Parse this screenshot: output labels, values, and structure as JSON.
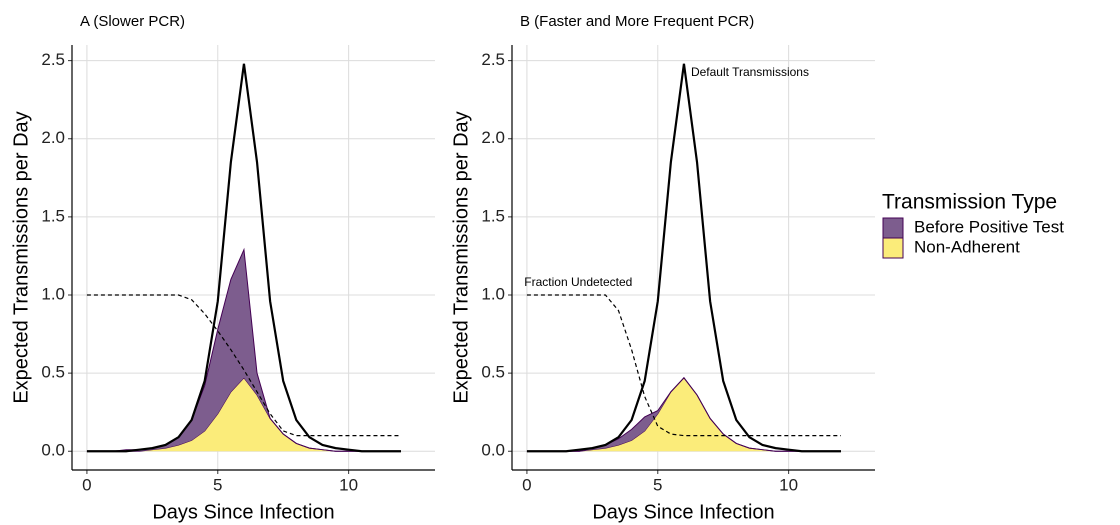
{
  "chart_data": [
    {
      "type": "area",
      "title": "A (Slower PCR)",
      "x_label": "Days Since Infection",
      "y_label": "Expected Transmissions per Day",
      "x": [
        0,
        0.5,
        1,
        1.5,
        2,
        2.5,
        3,
        3.5,
        4,
        4.5,
        5,
        5.5,
        6,
        6.5,
        7,
        7.5,
        8,
        8.5,
        9,
        9.5,
        10,
        10.5,
        11,
        11.5,
        12
      ],
      "series": [
        {
          "name": "Non-Adherent",
          "color": "#fbec7a",
          "stroke": "#440154",
          "values": [
            0,
            0,
            0,
            0,
            0,
            0.01,
            0.02,
            0.04,
            0.07,
            0.13,
            0.24,
            0.38,
            0.47,
            0.36,
            0.21,
            0.11,
            0.05,
            0.02,
            0.01,
            0,
            0,
            0,
            0,
            0,
            0
          ]
        },
        {
          "name": "Before Positive Test",
          "color": "#7d5d8e",
          "stroke": "#440154",
          "values": [
            0,
            0,
            0,
            0.01,
            0.01,
            0.01,
            0.02,
            0.05,
            0.13,
            0.29,
            0.54,
            0.72,
            0.82,
            0.14,
            0,
            0,
            0,
            0,
            0,
            0,
            0,
            0,
            0,
            0,
            0
          ]
        }
      ],
      "default_line": {
        "color": "#000000",
        "values": [
          0,
          0,
          0,
          0,
          0.01,
          0.02,
          0.04,
          0.09,
          0.2,
          0.45,
          0.96,
          1.85,
          2.48,
          1.85,
          0.96,
          0.45,
          0.2,
          0.09,
          0.04,
          0.02,
          0.01,
          0,
          0,
          0,
          0
        ]
      },
      "fraction_line": {
        "color": "#000000",
        "x": [
          0,
          3.5,
          4,
          4.5,
          5,
          5.5,
          6,
          6.5,
          7,
          7.5,
          8,
          12
        ],
        "values": [
          1,
          1,
          0.97,
          0.88,
          0.77,
          0.65,
          0.52,
          0.38,
          0.24,
          0.13,
          0.1,
          0.1
        ]
      },
      "annotations": [],
      "xlim": [
        -0.57,
        13.3
      ],
      "ylim": [
        -0.12,
        2.6
      ],
      "xticks": [
        0,
        5,
        10
      ],
      "yticks": [
        {
          "value": 0,
          "label": "0.0"
        },
        0.5,
        {
          "value": 1,
          "label": "1.0"
        },
        1.5,
        {
          "value": 2,
          "label": "2.0"
        },
        2.5
      ],
      "grid": true
    },
    {
      "type": "area",
      "title": "B (Faster and More Frequent PCR)",
      "x_label": "Days Since Infection",
      "y_label": "Expected Transmissions per Day",
      "x": [
        0,
        0.5,
        1,
        1.5,
        2,
        2.5,
        3,
        3.5,
        4,
        4.5,
        5,
        5.5,
        6,
        6.5,
        7,
        7.5,
        8,
        8.5,
        9,
        9.5,
        10,
        10.5,
        11,
        11.5,
        12
      ],
      "series": [
        {
          "name": "Non-Adherent",
          "color": "#fbec7a",
          "stroke": "#440154",
          "values": [
            0,
            0,
            0,
            0,
            0,
            0.01,
            0.02,
            0.04,
            0.07,
            0.13,
            0.24,
            0.38,
            0.47,
            0.36,
            0.21,
            0.11,
            0.05,
            0.02,
            0.01,
            0,
            0,
            0,
            0,
            0,
            0
          ]
        },
        {
          "name": "Before Positive Test",
          "color": "#7d5d8e",
          "stroke": "#440154",
          "values": [
            0,
            0,
            0,
            0,
            0,
            0.01,
            0.02,
            0.04,
            0.07,
            0.09,
            0.02,
            0,
            0,
            0,
            0,
            0,
            0,
            0,
            0,
            0,
            0,
            0,
            0,
            0,
            0
          ]
        }
      ],
      "default_line": {
        "color": "#000000",
        "values": [
          0,
          0,
          0,
          0,
          0.01,
          0.02,
          0.04,
          0.09,
          0.2,
          0.45,
          0.96,
          1.85,
          2.48,
          1.85,
          0.96,
          0.45,
          0.2,
          0.09,
          0.04,
          0.02,
          0.01,
          0,
          0,
          0,
          0
        ]
      },
      "fraction_line": {
        "color": "#000000",
        "x": [
          0,
          3,
          3.5,
          4,
          4.5,
          5,
          5.5,
          6,
          12
        ],
        "values": [
          1,
          1,
          0.9,
          0.65,
          0.35,
          0.16,
          0.11,
          0.1,
          0.1
        ]
      },
      "annotations": [
        "Default Transmissions",
        "Fraction Undetected"
      ],
      "xlim": [
        -0.57,
        13.3
      ],
      "ylim": [
        -0.12,
        2.6
      ],
      "xticks": [
        0,
        5,
        10
      ],
      "yticks": [
        {
          "value": 0,
          "label": "0.0"
        },
        0.5,
        {
          "value": 1,
          "label": "1.0"
        },
        1.5,
        {
          "value": 2,
          "label": "2.0"
        },
        2.5
      ],
      "grid": true
    }
  ],
  "legend_title": "Transmission Type"
}
